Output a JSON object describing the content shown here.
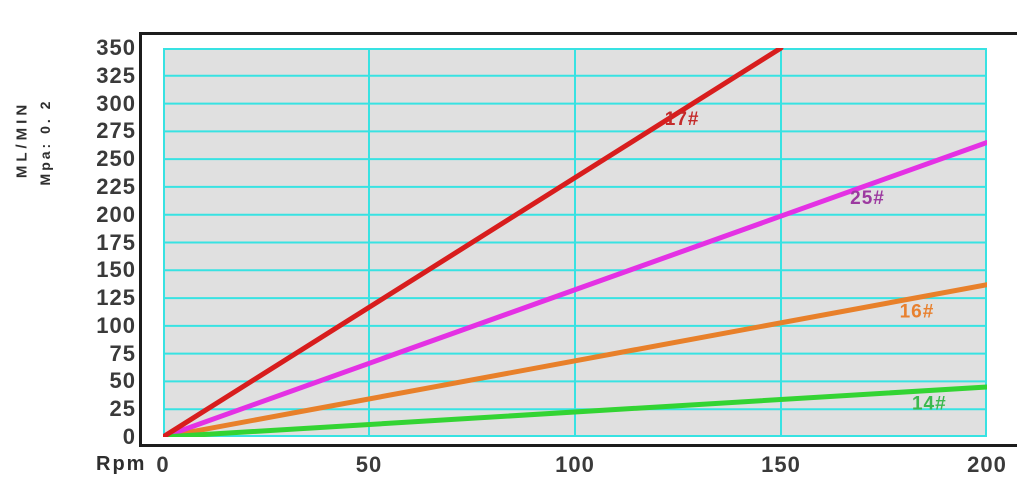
{
  "page": {
    "background": "#ffffff"
  },
  "chart_data": {
    "type": "line",
    "title": "",
    "xlabel": "Rpm",
    "ylabel_line1": "ML/MIN",
    "ylabel_line2": "Mpa: 0. 2",
    "xlim": [
      0,
      200
    ],
    "ylim": [
      0,
      350
    ],
    "x_ticks": [
      0,
      50,
      100,
      150,
      200
    ],
    "y_ticks": [
      0,
      25,
      50,
      75,
      100,
      125,
      150,
      175,
      200,
      225,
      250,
      275,
      300,
      325,
      350
    ],
    "grid": {
      "on": true,
      "line_color": "#38e2e2",
      "plot_background": "#e0e0e0",
      "frame_color": "#1c1c1c",
      "page_background": "#ffffff"
    },
    "legend_position": "labels-on-lines",
    "series": [
      {
        "name": "16#",
        "color": "#e8802a",
        "label_color": "#e8812f",
        "x": [
          0,
          200
        ],
        "y": [
          0,
          137
        ],
        "label_at": [
          183,
          114
        ]
      },
      {
        "name": "25#",
        "color": "#e431e4",
        "label_color": "#9c3aa0",
        "x": [
          0,
          200
        ],
        "y": [
          0,
          265
        ],
        "label_at": [
          171,
          216
        ]
      },
      {
        "name": "14#",
        "color": "#33d433",
        "label_color": "#3cb94e",
        "x": [
          0,
          200
        ],
        "y": [
          0,
          45
        ],
        "label_at": [
          186,
          31
        ]
      },
      {
        "name": "17#",
        "color": "#d81d1d",
        "label_color": "#c42a2a",
        "x": [
          0,
          150
        ],
        "y": [
          0,
          350
        ],
        "label_at": [
          126,
          287
        ]
      }
    ]
  }
}
